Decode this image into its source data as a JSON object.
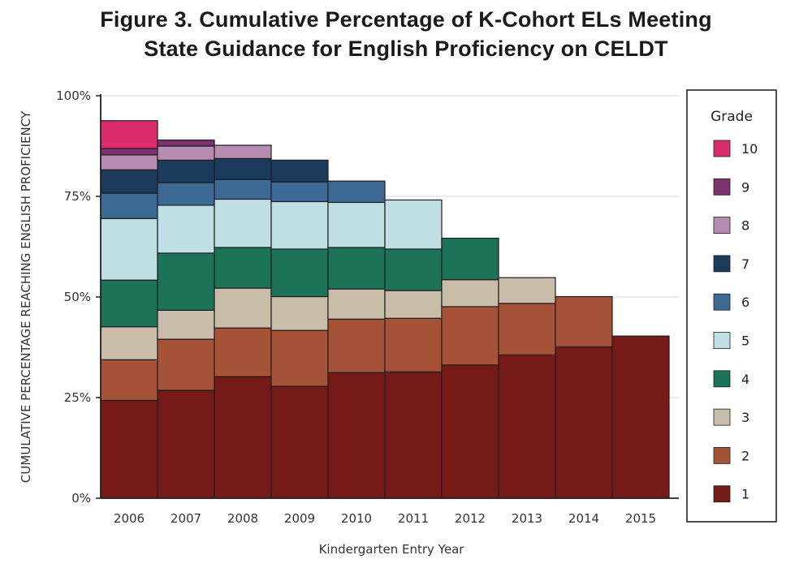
{
  "title_line1": "Figure 3. Cumulative Percentage of K-Cohort ELs Meeting",
  "title_line2": "State Guidance for English Proficiency on CELDT",
  "chart_data": {
    "type": "bar",
    "stacked": true,
    "title": "Figure 3. Cumulative Percentage of K-Cohort ELs Meeting State Guidance for English Proficiency on CELDT",
    "xlabel": "Kindergarten Entry Year",
    "ylabel": "CUMULATIVE PERCENTAGE REACHING ENGLISH PROFICIENCY",
    "ylim": [
      0,
      100
    ],
    "yticks": [
      0,
      25,
      50,
      75,
      100
    ],
    "ytick_labels": [
      "0%",
      "25%",
      "50%",
      "75%",
      "100%"
    ],
    "grid": true,
    "legend_title": "Grade",
    "legend_position": "right",
    "categories": [
      "2006",
      "2007",
      "2008",
      "2009",
      "2010",
      "2011",
      "2012",
      "2013",
      "2014",
      "2015"
    ],
    "series": [
      {
        "name": "1",
        "color": "#751a16",
        "cumulative": [
          24.3,
          26.8,
          30.2,
          27.8,
          31.2,
          31.4,
          33.1,
          35.6,
          37.6,
          40.3
        ]
      },
      {
        "name": "2",
        "color": "#a65236",
        "cumulative": [
          34.4,
          39.5,
          42.3,
          41.7,
          44.5,
          44.7,
          47.6,
          48.4,
          50.1,
          null
        ]
      },
      {
        "name": "3",
        "color": "#c9bca8",
        "cumulative": [
          42.6,
          46.7,
          52.2,
          50.1,
          52.0,
          51.6,
          54.3,
          54.8,
          null,
          null
        ]
      },
      {
        "name": "4",
        "color": "#1c7359",
        "cumulative": [
          54.2,
          60.9,
          62.3,
          61.9,
          62.3,
          61.9,
          64.6,
          null,
          null,
          null
        ]
      },
      {
        "name": "5",
        "color": "#bfdfe4",
        "cumulative": [
          69.5,
          72.8,
          74.3,
          73.7,
          73.5,
          74.1,
          null,
          null,
          null,
          null
        ]
      },
      {
        "name": "6",
        "color": "#3d6a94",
        "cumulative": [
          75.8,
          78.4,
          79.2,
          78.6,
          78.8,
          null,
          null,
          null,
          null,
          null
        ]
      },
      {
        "name": "7",
        "color": "#1b3a5c",
        "cumulative": [
          81.6,
          84.0,
          84.4,
          84.0,
          null,
          null,
          null,
          null,
          null,
          null
        ]
      },
      {
        "name": "8",
        "color": "#b88bb2",
        "cumulative": [
          85.3,
          87.5,
          87.7,
          null,
          null,
          null,
          null,
          null,
          null,
          null
        ]
      },
      {
        "name": "9",
        "color": "#7a3270",
        "cumulative": [
          86.9,
          89.0,
          null,
          null,
          null,
          null,
          null,
          null,
          null,
          null
        ]
      },
      {
        "name": "10",
        "color": "#db2c6e",
        "cumulative": [
          93.8,
          null,
          null,
          null,
          null,
          null,
          null,
          null,
          null,
          null
        ]
      }
    ]
  }
}
